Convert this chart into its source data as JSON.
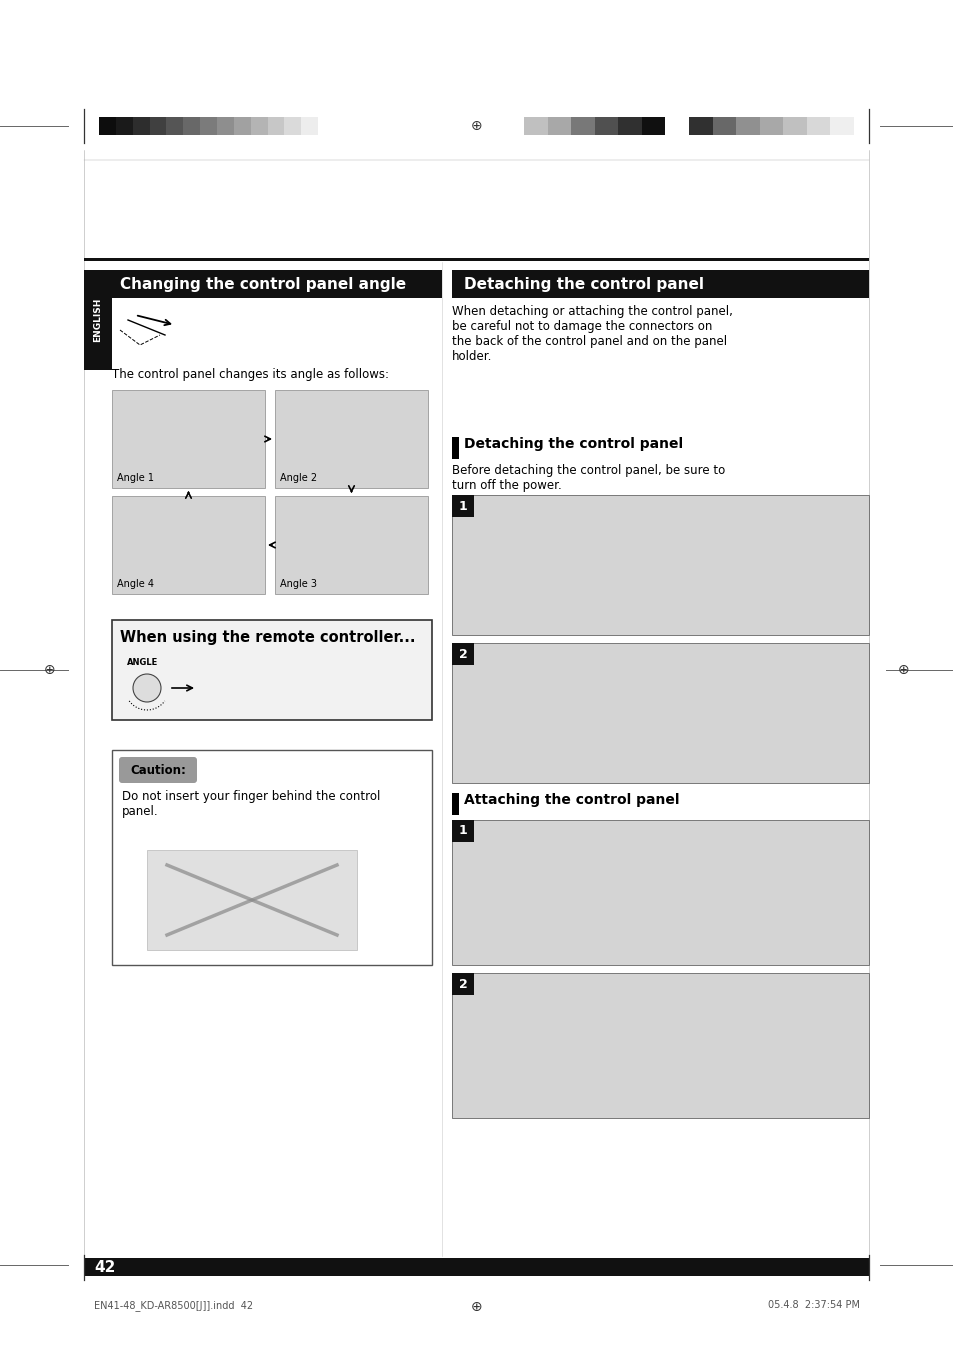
{
  "page_bg": "#ffffff",
  "page_width": 9.54,
  "page_height": 13.51,
  "dpi": 100,
  "left_gradbars": [
    "#0d0d0d",
    "#1a1a1a",
    "#2d2d2d",
    "#404040",
    "#555555",
    "#686868",
    "#7b7b7b",
    "#8e8e8e",
    "#a1a1a1",
    "#b4b4b4",
    "#c7c7c7",
    "#dadada",
    "#ededed",
    "#ffffff"
  ],
  "right_gradbars": [
    "#c0c0c0",
    "#a8a8a8",
    "#787878",
    "#505050",
    "#303030",
    "#101010",
    "#ffffff",
    "#303030",
    "#686868",
    "#909090",
    "#a8a8a8",
    "#c0c0c0",
    "#d8d8d8",
    "#efefef"
  ],
  "english_tab_color": "#111111",
  "english_text": "ENGLISH",
  "left_title_text": "Changing the control panel angle",
  "left_title_bg": "#111111",
  "left_title_color": "#ffffff",
  "right_title_text": "Detaching the control panel",
  "right_title_bg": "#111111",
  "right_title_color": "#ffffff",
  "left_desc_text": "The control panel changes its angle as follows:",
  "right_desc_text": "When detaching or attaching the control panel,\nbe careful not to damage the connectors on\nthe back of the control panel and on the panel\nholder.",
  "detach_subtitle_text": "Detaching the control panel",
  "detach_sub_desc_text": "Before detaching the control panel, be sure to\nturn off the power.",
  "attach_subtitle_text": "Attaching the control panel",
  "when_remote_title_text": "When using the remote controller...",
  "when_remote_bg": "#f2f2f2",
  "when_remote_border": "#333333",
  "caution_title": "Caution:",
  "caution_text": "Do not insert your finger behind the control\npanel.",
  "caution_title_bg": "#999999",
  "caution_border": "#555555",
  "gray_box_color": "#d4d4d4",
  "step_number_bg": "#111111",
  "step_number_text_color": "#ffffff",
  "page_number_text": "42",
  "footer_left_text": "EN41-48_KD-AR8500[J]].indd  42",
  "footer_center_text": "⊕",
  "footer_right_text": "05.4.8  2:37:54 PM"
}
